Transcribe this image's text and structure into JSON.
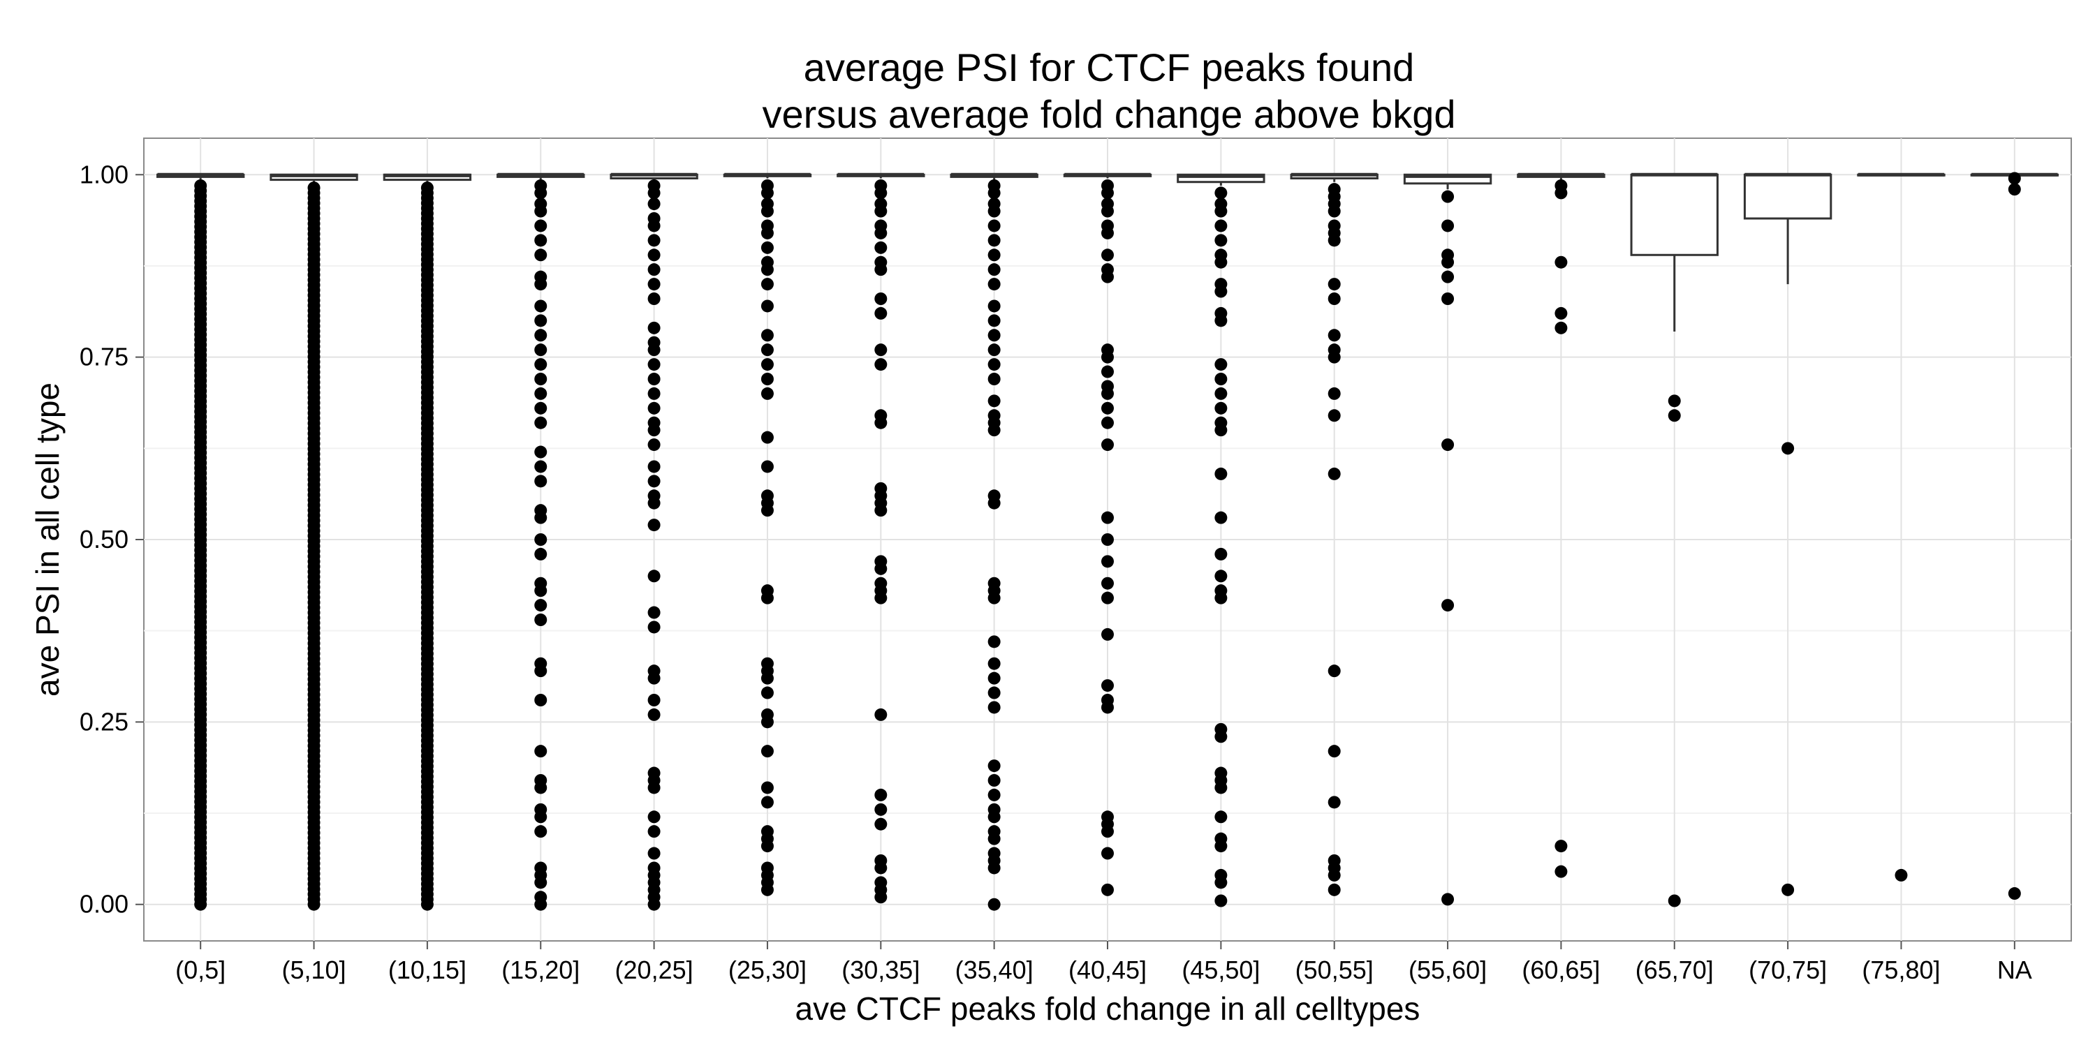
{
  "chart_data": {
    "type": "box",
    "title_lines": [
      "average PSI for CTCF peaks found",
      "versus average fold change above bkgd"
    ],
    "xlabel": "ave CTCF peaks fold change in all celltypes",
    "ylabel": "ave PSI in all cell type",
    "ylim": [
      -0.05,
      1.05
    ],
    "y_ticks": [
      0.0,
      0.25,
      0.5,
      0.75,
      1.0
    ],
    "y_tick_labels": [
      "0.00",
      "0.25",
      "0.50",
      "0.75",
      "1.00"
    ],
    "grid": true,
    "categories": [
      "(0,5]",
      "(5,10]",
      "(10,15]",
      "(15,20]",
      "(20,25]",
      "(25,30]",
      "(30,35]",
      "(35,40]",
      "(40,45]",
      "(45,50]",
      "(50,55]",
      "(55,60]",
      "(60,65]",
      "(65,70]",
      "(70,75]",
      "(75,80]",
      "NA"
    ],
    "boxes": [
      {
        "q1": 0.997,
        "median": 1.0,
        "q3": 1.0,
        "whisker_low": 0.99,
        "whisker_high": 1.0,
        "outlier_range": [
          0.0,
          0.985
        ],
        "outliers": []
      },
      {
        "q1": 0.993,
        "median": 0.999,
        "q3": 1.0,
        "whisker_low": 0.985,
        "whisker_high": 1.0,
        "outlier_range": [
          0.0,
          0.982
        ],
        "outliers": []
      },
      {
        "q1": 0.993,
        "median": 0.999,
        "q3": 1.0,
        "whisker_low": 0.985,
        "whisker_high": 1.0,
        "outlier_range": [
          0.0,
          0.982
        ],
        "outliers": []
      },
      {
        "q1": 0.997,
        "median": 1.0,
        "q3": 1.0,
        "whisker_low": 0.99,
        "whisker_high": 1.0,
        "outliers": [
          0.985,
          0.975,
          0.96,
          0.95,
          0.93,
          0.91,
          0.89,
          0.86,
          0.85,
          0.82,
          0.8,
          0.78,
          0.76,
          0.74,
          0.72,
          0.7,
          0.68,
          0.66,
          0.62,
          0.6,
          0.58,
          0.54,
          0.53,
          0.5,
          0.48,
          0.44,
          0.43,
          0.41,
          0.39,
          0.33,
          0.32,
          0.28,
          0.21,
          0.17,
          0.16,
          0.13,
          0.12,
          0.1,
          0.05,
          0.04,
          0.03,
          0.01,
          0.0
        ]
      },
      {
        "q1": 0.995,
        "median": 1.0,
        "q3": 1.0,
        "whisker_low": 0.99,
        "whisker_high": 1.0,
        "outliers": [
          0.985,
          0.975,
          0.96,
          0.94,
          0.93,
          0.91,
          0.89,
          0.87,
          0.85,
          0.83,
          0.79,
          0.77,
          0.76,
          0.74,
          0.72,
          0.7,
          0.68,
          0.66,
          0.65,
          0.63,
          0.6,
          0.58,
          0.56,
          0.55,
          0.52,
          0.45,
          0.4,
          0.38,
          0.32,
          0.31,
          0.28,
          0.26,
          0.18,
          0.17,
          0.16,
          0.12,
          0.1,
          0.07,
          0.05,
          0.04,
          0.03,
          0.02,
          0.01,
          0.0
        ]
      },
      {
        "q1": 0.998,
        "median": 1.0,
        "q3": 1.0,
        "whisker_low": 0.995,
        "whisker_high": 1.0,
        "outliers": [
          0.985,
          0.975,
          0.96,
          0.95,
          0.93,
          0.92,
          0.9,
          0.88,
          0.87,
          0.85,
          0.82,
          0.78,
          0.76,
          0.74,
          0.72,
          0.7,
          0.64,
          0.6,
          0.56,
          0.55,
          0.54,
          0.43,
          0.42,
          0.33,
          0.32,
          0.31,
          0.29,
          0.26,
          0.25,
          0.21,
          0.16,
          0.14,
          0.1,
          0.09,
          0.08,
          0.05,
          0.04,
          0.03,
          0.02
        ]
      },
      {
        "q1": 0.998,
        "median": 1.0,
        "q3": 1.0,
        "whisker_low": 0.995,
        "whisker_high": 1.0,
        "outliers": [
          0.985,
          0.975,
          0.96,
          0.95,
          0.93,
          0.92,
          0.9,
          0.88,
          0.87,
          0.83,
          0.81,
          0.76,
          0.74,
          0.67,
          0.66,
          0.57,
          0.56,
          0.55,
          0.54,
          0.47,
          0.46,
          0.44,
          0.43,
          0.42,
          0.26,
          0.15,
          0.13,
          0.11,
          0.06,
          0.05,
          0.03,
          0.02,
          0.01
        ]
      },
      {
        "q1": 0.997,
        "median": 1.0,
        "q3": 1.0,
        "whisker_low": 0.99,
        "whisker_high": 1.0,
        "outliers": [
          0.985,
          0.975,
          0.96,
          0.95,
          0.93,
          0.91,
          0.89,
          0.87,
          0.85,
          0.82,
          0.8,
          0.78,
          0.76,
          0.74,
          0.72,
          0.69,
          0.67,
          0.66,
          0.65,
          0.56,
          0.55,
          0.44,
          0.43,
          0.42,
          0.36,
          0.33,
          0.31,
          0.29,
          0.27,
          0.19,
          0.17,
          0.15,
          0.13,
          0.12,
          0.1,
          0.09,
          0.07,
          0.06,
          0.05,
          0.0
        ]
      },
      {
        "q1": 0.998,
        "median": 1.0,
        "q3": 1.0,
        "whisker_low": 0.995,
        "whisker_high": 1.0,
        "outliers": [
          0.985,
          0.975,
          0.96,
          0.95,
          0.93,
          0.92,
          0.89,
          0.87,
          0.86,
          0.76,
          0.75,
          0.73,
          0.71,
          0.7,
          0.68,
          0.66,
          0.63,
          0.53,
          0.5,
          0.47,
          0.44,
          0.42,
          0.37,
          0.3,
          0.28,
          0.27,
          0.12,
          0.11,
          0.1,
          0.07,
          0.02
        ]
      },
      {
        "q1": 0.99,
        "median": 0.998,
        "q3": 1.0,
        "whisker_low": 0.985,
        "whisker_high": 1.0,
        "outliers": [
          0.975,
          0.96,
          0.95,
          0.93,
          0.91,
          0.89,
          0.88,
          0.85,
          0.84,
          0.81,
          0.8,
          0.74,
          0.72,
          0.7,
          0.68,
          0.66,
          0.65,
          0.59,
          0.53,
          0.48,
          0.45,
          0.43,
          0.42,
          0.24,
          0.23,
          0.18,
          0.17,
          0.16,
          0.12,
          0.09,
          0.08,
          0.04,
          0.03,
          0.005
        ]
      },
      {
        "q1": 0.995,
        "median": 1.0,
        "q3": 1.0,
        "whisker_low": 0.99,
        "whisker_high": 1.0,
        "outliers": [
          0.98,
          0.97,
          0.96,
          0.95,
          0.93,
          0.92,
          0.91,
          0.85,
          0.83,
          0.78,
          0.76,
          0.75,
          0.7,
          0.67,
          0.59,
          0.32,
          0.21,
          0.14,
          0.06,
          0.05,
          0.04,
          0.02
        ]
      },
      {
        "q1": 0.988,
        "median": 0.998,
        "q3": 1.0,
        "whisker_low": 0.98,
        "whisker_high": 1.0,
        "outliers": [
          0.97,
          0.93,
          0.89,
          0.88,
          0.86,
          0.83,
          0.63,
          0.41,
          0.007
        ]
      },
      {
        "q1": 0.997,
        "median": 1.0,
        "q3": 1.0,
        "whisker_low": 0.99,
        "whisker_high": 1.0,
        "outliers": [
          0.985,
          0.975,
          0.88,
          0.81,
          0.79,
          0.08,
          0.045
        ]
      },
      {
        "q1": 0.89,
        "median": 1.0,
        "q3": 1.0,
        "whisker_low": 0.785,
        "whisker_high": 1.0,
        "outliers": [
          0.69,
          0.67,
          0.005
        ]
      },
      {
        "q1": 0.94,
        "median": 1.0,
        "q3": 1.0,
        "whisker_low": 0.85,
        "whisker_high": 1.0,
        "outliers": [
          0.625,
          0.02
        ]
      },
      {
        "q1": 1.0,
        "median": 1.0,
        "q3": 1.0,
        "whisker_low": 1.0,
        "whisker_high": 1.0,
        "outliers": [
          0.04
        ]
      },
      {
        "q1": 1.0,
        "median": 1.0,
        "q3": 1.0,
        "whisker_low": 1.0,
        "whisker_high": 1.0,
        "outliers": [
          0.995,
          0.98,
          0.015
        ]
      }
    ]
  }
}
